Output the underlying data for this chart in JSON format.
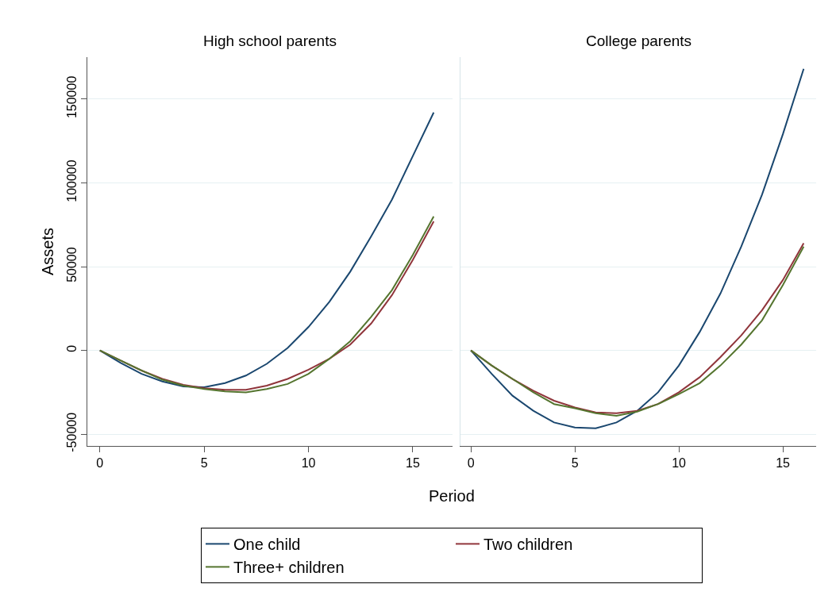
{
  "chart_data": [
    {
      "type": "line",
      "title": "High school parents",
      "ylabel": "Assets",
      "xlabel": "Period",
      "grid": "y",
      "legend": "bottom",
      "line_style": "solid",
      "marker": "none",
      "x": [
        0,
        1,
        2,
        3,
        4,
        5,
        6,
        7,
        8,
        9,
        10,
        11,
        12,
        13,
        14,
        15,
        16
      ],
      "xlim": [
        -0.6,
        16.9
      ],
      "xticks": [
        0,
        5,
        10,
        15
      ],
      "ylim": [
        -57000,
        175000
      ],
      "yticks": [
        -50000,
        0,
        50000,
        100000,
        150000
      ],
      "series": [
        {
          "name": "One child",
          "color": "#1a476f",
          "values": [
            0,
            -7500,
            -14000,
            -18500,
            -21500,
            -22000,
            -19500,
            -15000,
            -8000,
            1500,
            14000,
            29000,
            47000,
            68000,
            90000,
            116000,
            142000
          ]
        },
        {
          "name": "Two children",
          "color": "#90353b",
          "values": [
            0,
            -6000,
            -12000,
            -17000,
            -20500,
            -22500,
            -23500,
            -23500,
            -21000,
            -17000,
            -11500,
            -5000,
            3500,
            16000,
            33000,
            54000,
            77000
          ]
        },
        {
          "name": "Three+ children",
          "color": "#55752f",
          "values": [
            0,
            -6000,
            -12000,
            -17500,
            -21000,
            -23000,
            -24500,
            -25000,
            -23000,
            -20000,
            -14000,
            -5000,
            5500,
            20000,
            36000,
            57000,
            80000
          ]
        }
      ]
    },
    {
      "type": "line",
      "title": "College parents",
      "grid": "y",
      "tick_labels": "x",
      "line_style": "solid",
      "marker": "none",
      "x": [
        0,
        1,
        2,
        3,
        4,
        5,
        6,
        7,
        8,
        9,
        10,
        11,
        12,
        13,
        14,
        15,
        16
      ],
      "xlim": [
        -0.5,
        16.6
      ],
      "xticks": [
        0,
        5,
        10,
        15
      ],
      "ylim": [
        -57000,
        175000
      ],
      "yticks": [
        -50000,
        0,
        50000,
        100000,
        150000
      ],
      "series": [
        {
          "color": "#1a476f",
          "values": [
            0,
            -14000,
            -27000,
            -36000,
            -43000,
            -46000,
            -46500,
            -43000,
            -36000,
            -25000,
            -9000,
            11000,
            34000,
            62000,
            93000,
            129000,
            168000
          ]
        },
        {
          "color": "#90353b",
          "values": [
            0,
            -9000,
            -17000,
            -24000,
            -30000,
            -34000,
            -37000,
            -37500,
            -36000,
            -32000,
            -25000,
            -16000,
            -4000,
            9000,
            24000,
            42000,
            64000
          ]
        },
        {
          "color": "#55752f",
          "values": [
            0,
            -9000,
            -17000,
            -25000,
            -32000,
            -34500,
            -37500,
            -39000,
            -36500,
            -32000,
            -26000,
            -19500,
            -9000,
            3500,
            18000,
            39000,
            62000
          ]
        }
      ]
    }
  ]
}
